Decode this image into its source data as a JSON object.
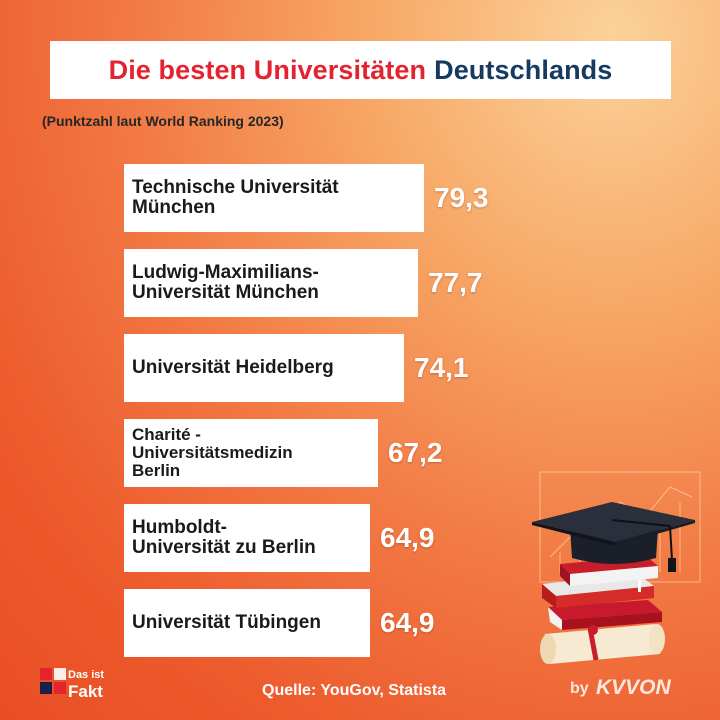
{
  "title": {
    "part1": "Die besten Universitäten",
    "part2": "Deutschlands"
  },
  "subtitle": "(Punktzahl laut World Ranking 2023)",
  "chart_data": {
    "type": "bar",
    "orientation": "horizontal",
    "categories": [
      "Technische Universität\nMünchen",
      "Ludwig-Maximilians-\nUniversität München",
      "Universität Heidelberg",
      "Charité -\nUniversitätsmedizin\nBerlin",
      "Humboldt-\nUniversität zu Berlin",
      "Universität Tübingen"
    ],
    "values": [
      79.3,
      77.7,
      74.1,
      67.2,
      64.9,
      64.9
    ],
    "value_labels": [
      "79,3",
      "77,7",
      "74,1",
      "67,2",
      "64,9",
      "64,9"
    ],
    "grid": false,
    "legend": "none"
  },
  "source": "Quelle: YouGov, Statista",
  "branding": {
    "logo_line1": "Das ist",
    "logo_line2": "Fakt",
    "by": "by",
    "wordmark": "KVVON"
  },
  "colors": {
    "title_red": "#e4232f",
    "title_blue": "#163a60",
    "bar_fill": "#ffffff",
    "value_text": "#ffffff"
  },
  "icons": [
    "graduation-cap-icon",
    "book-stack-icon",
    "diploma-scroll-icon",
    "brand-logo-icon"
  ]
}
